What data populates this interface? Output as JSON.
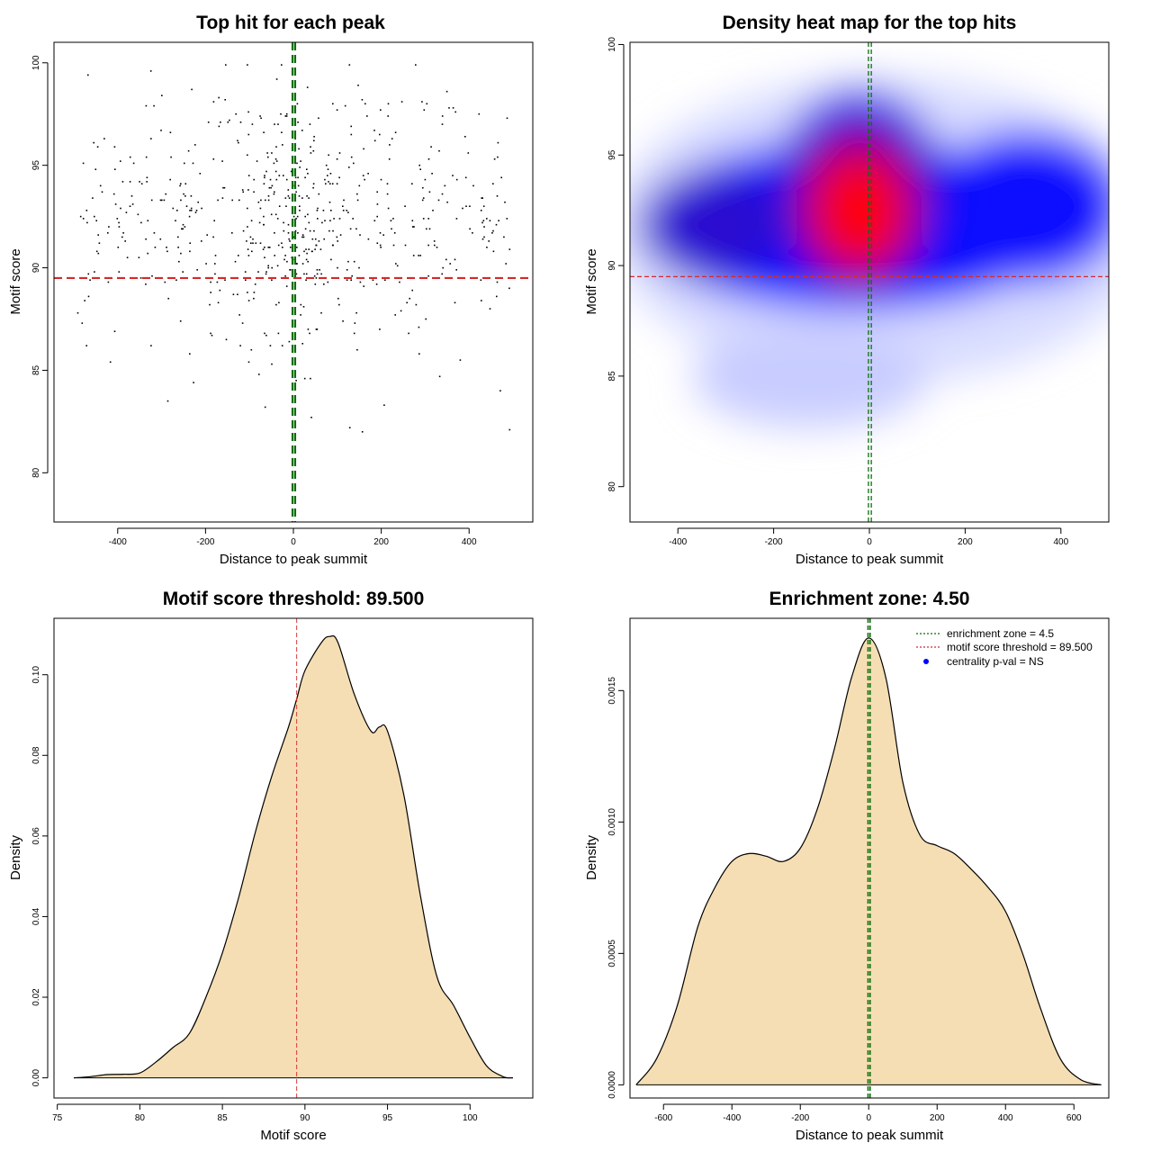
{
  "chart_data": [
    {
      "type": "scatter",
      "title": "Top hit for each peak",
      "xlabel": "Distance to peak summit",
      "ylabel": "Motif score",
      "xlim": [
        -545,
        545
      ],
      "ylim": [
        77.6,
        101.0
      ],
      "xticks": [
        -400,
        -200,
        0,
        200,
        400
      ],
      "yticks": [
        80,
        85,
        90,
        95,
        100
      ],
      "xtick_labels": [
        "-400",
        "-200",
        "0",
        "200",
        "400"
      ],
      "ytick_labels": [
        "80",
        "85",
        "90",
        "95",
        "100"
      ],
      "hline": 89.5,
      "hline_color": "#d42a2a",
      "vlines": [
        -2,
        4
      ],
      "vline_color": "#0b6e0b",
      "point_count": 650,
      "points_summary": "approx. 650 points; x spread -495..495, y mostly 84-99, densest near x=0, y 90-96"
    },
    {
      "type": "heatmap",
      "title": "Density heat map for the top hits",
      "xlabel": "Distance to peak summit",
      "ylabel": "Motif score",
      "xlim": [
        -500,
        500
      ],
      "ylim": [
        78.4,
        100.1
      ],
      "xticks": [
        -400,
        -200,
        0,
        200,
        400
      ],
      "yticks": [
        80,
        85,
        90,
        95,
        100
      ],
      "xtick_labels": [
        "-400",
        "-200",
        "0",
        "200",
        "400"
      ],
      "ytick_labels": [
        "80",
        "85",
        "90",
        "95",
        "100"
      ],
      "hline": 89.5,
      "hline_color": "#d42a2a",
      "vlines": [
        -2,
        4
      ],
      "vline_color": "#0b6e0b",
      "density_peak": {
        "x": -10,
        "y": 92.5
      },
      "colors": [
        "#ffffff",
        "#0000ff",
        "#ff0000"
      ]
    },
    {
      "type": "area",
      "title": "Motif score threshold: 89.500",
      "xlabel": "Motif score",
      "ylabel": "Density",
      "xlim": [
        74.8,
        103.8
      ],
      "ylim": [
        -0.005,
        0.114
      ],
      "xticks": [
        75,
        80,
        85,
        90,
        95,
        100
      ],
      "yticks": [
        0.0,
        0.02,
        0.04,
        0.06,
        0.08,
        0.1
      ],
      "xtick_labels": [
        "75",
        "80",
        "85",
        "90",
        "95",
        "100"
      ],
      "ytick_labels": [
        "0.00",
        "0.02",
        "0.04",
        "0.06",
        "0.08",
        "0.10"
      ],
      "x": [
        76,
        77,
        78,
        79,
        80,
        81,
        82,
        83,
        84,
        85,
        86,
        87,
        88,
        89,
        89.5,
        90,
        91,
        91.5,
        92,
        93,
        94,
        94.5,
        95,
        96,
        97,
        98,
        99,
        100,
        101,
        102,
        102.6
      ],
      "y": [
        0.0,
        0.0003,
        0.0008,
        0.0009,
        0.0012,
        0.004,
        0.0075,
        0.011,
        0.02,
        0.031,
        0.045,
        0.061,
        0.075,
        0.087,
        0.094,
        0.101,
        0.108,
        0.1095,
        0.108,
        0.095,
        0.086,
        0.087,
        0.086,
        0.07,
        0.045,
        0.025,
        0.018,
        0.01,
        0.003,
        0.0003,
        0.0
      ],
      "vline": 89.5,
      "vline_color": "#d42a2a",
      "fill": "#f5deb3"
    },
    {
      "type": "area",
      "title": "Enrichment zone: 4.50",
      "xlabel": "Distance to peak summit",
      "ylabel": "Density",
      "xlim": [
        -698,
        702
      ],
      "ylim": [
        -5e-05,
        0.001775
      ],
      "xticks": [
        -600,
        -400,
        -200,
        0,
        200,
        400,
        600
      ],
      "yticks": [
        0.0,
        0.0005,
        0.001,
        0.0015
      ],
      "xtick_labels": [
        "-600",
        "-400",
        "-200",
        "0",
        "200",
        "400",
        "600"
      ],
      "ytick_labels": [
        "0.0000",
        "0.0005",
        "0.0010",
        "0.0015"
      ],
      "x": [
        -680,
        -620,
        -560,
        -500,
        -450,
        -400,
        -350,
        -300,
        -250,
        -200,
        -150,
        -100,
        -50,
        0,
        50,
        100,
        150,
        200,
        250,
        300,
        350,
        400,
        450,
        500,
        560,
        620,
        680
      ],
      "y": [
        0.0,
        0.0001,
        0.0003,
        0.0006,
        0.00075,
        0.00085,
        0.00088,
        0.00087,
        0.00085,
        0.0009,
        0.00105,
        0.00128,
        0.00155,
        0.0017,
        0.00155,
        0.00115,
        0.00095,
        0.00091,
        0.00088,
        0.00082,
        0.00075,
        0.00066,
        0.0005,
        0.0003,
        0.0001,
        2e-05,
        0.0
      ],
      "vlines": [
        -2,
        4
      ],
      "vline_color": "#0b6e0b",
      "fill": "#f5deb3",
      "legend": [
        {
          "label": "enrichment zone = 4.5",
          "color": "#0b6e0b",
          "style": "dotted-line"
        },
        {
          "label": "motif score threshold = 89.500",
          "color": "#d42a2a",
          "style": "dotted-line"
        },
        {
          "label": "centrality p-val = NS",
          "color": "#0000ff",
          "style": "point"
        }
      ]
    }
  ]
}
